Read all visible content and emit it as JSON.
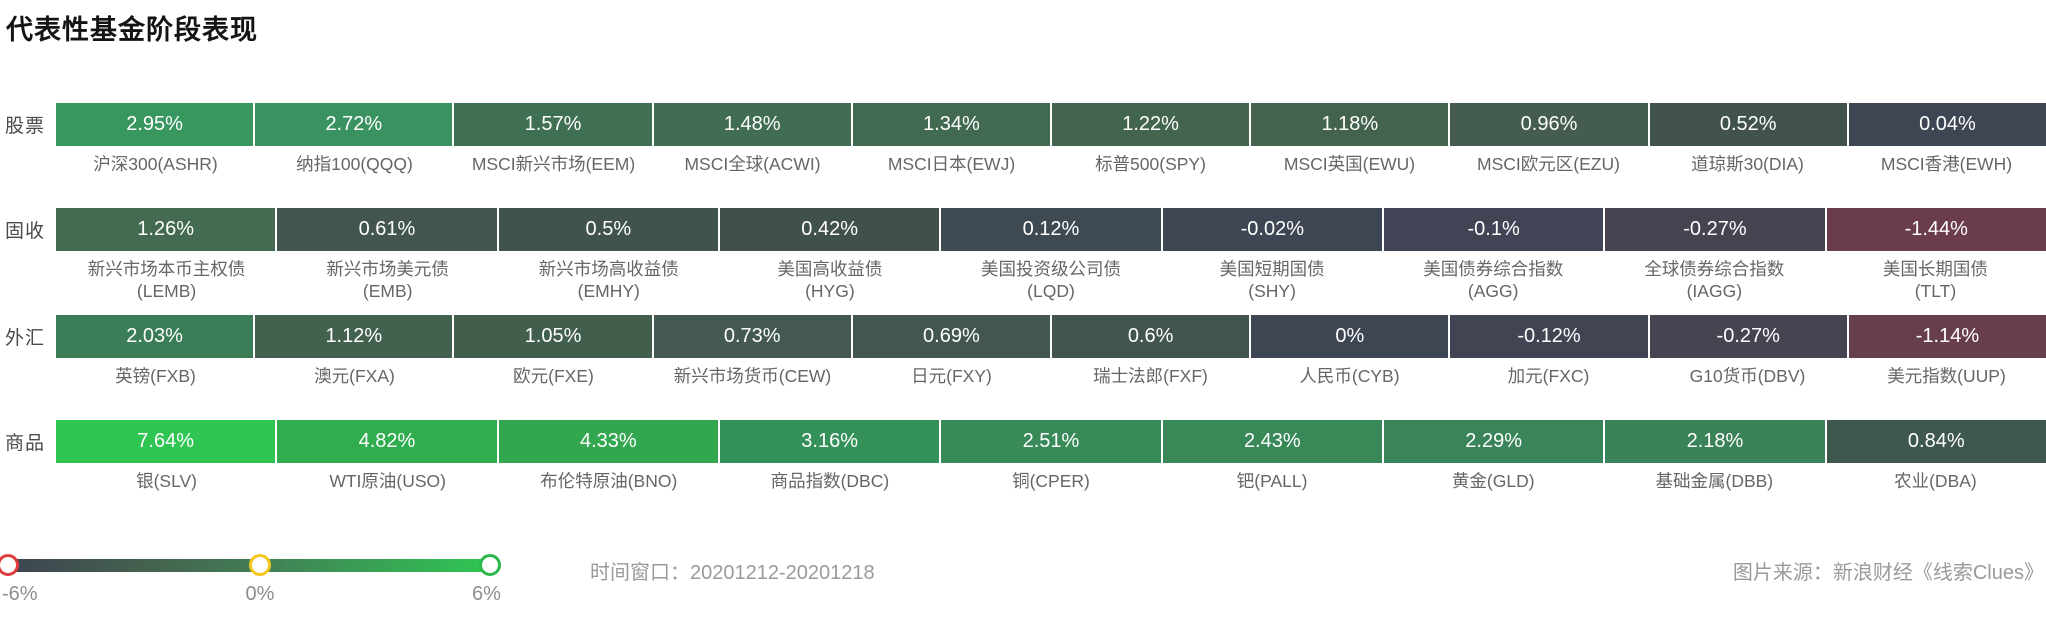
{
  "title": "代表性基金阶段表现",
  "footer": {
    "time_window": "时间窗口：20201212-20201218",
    "source": "图片来源：新浪财经《线索Clues》"
  },
  "legend": {
    "min_label": "-6%",
    "mid_label": "0%",
    "max_label": "6%",
    "track_colors": [
      "#3d4450",
      "#45654f",
      "#418056",
      "#2fc653"
    ],
    "handle_colors": {
      "min": "#e03c3c",
      "mid": "#f3c71b",
      "max": "#2db84c"
    }
  },
  "chart_data": {
    "type": "heatmap",
    "title": "代表性基金阶段表现",
    "time_window": "20201212-20201218",
    "scale": {
      "min": -6,
      "mid": 0,
      "max": 6,
      "unit": "%"
    },
    "rows": [
      {
        "category": "股票",
        "two_line": false,
        "cells": [
          {
            "v": 2.95,
            "label": "2.95%",
            "name": "沪深300",
            "ticker": "(ASHR)",
            "color": "#38965f"
          },
          {
            "v": 2.72,
            "label": "2.72%",
            "name": "纳指100",
            "ticker": "(QQQ)",
            "color": "#3a9261"
          },
          {
            "v": 1.57,
            "label": "1.57%",
            "name": "MSCI新兴市场",
            "ticker": "(EEM)",
            "color": "#3f7054"
          },
          {
            "v": 1.48,
            "label": "1.48%",
            "name": "MSCI全球",
            "ticker": "(ACWI)",
            "color": "#406d53"
          },
          {
            "v": 1.34,
            "label": "1.34%",
            "name": "MSCI日本",
            "ticker": "(EWJ)",
            "color": "#426951"
          },
          {
            "v": 1.22,
            "label": "1.22%",
            "name": "标普500",
            "ticker": "(SPY)",
            "color": "#436550"
          },
          {
            "v": 1.18,
            "label": "1.18%",
            "name": "MSCI英国",
            "ticker": "(EWU)",
            "color": "#44634f"
          },
          {
            "v": 0.96,
            "label": "0.96%",
            "name": "MSCI欧元区",
            "ticker": "(EZU)",
            "color": "#455d4e"
          },
          {
            "v": 0.52,
            "label": "0.52%",
            "name": "道琼斯30",
            "ticker": "(DIA)",
            "color": "#42524e"
          },
          {
            "v": 0.04,
            "label": "0.04%",
            "name": "MSCI香港",
            "ticker": "(EWH)",
            "color": "#3f4653"
          }
        ]
      },
      {
        "category": "固收",
        "two_line": true,
        "cells": [
          {
            "v": 1.26,
            "label": "1.26%",
            "name": "新兴市场本币主权债",
            "ticker": "(LEMB)",
            "color": "#446b51"
          },
          {
            "v": 0.61,
            "label": "0.61%",
            "name": "新兴市场美元债",
            "ticker": "(EMB)",
            "color": "#42554e"
          },
          {
            "v": 0.5,
            "label": "0.5%",
            "name": "新兴市场高收益债",
            "ticker": "(EMHY)",
            "color": "#41534d"
          },
          {
            "v": 0.42,
            "label": "0.42%",
            "name": "美国高收益债",
            "ticker": "(HYG)",
            "color": "#40504c"
          },
          {
            "v": 0.12,
            "label": "0.12%",
            "name": "美国投资级公司债",
            "ticker": "(LQD)",
            "color": "#3f4952"
          },
          {
            "v": -0.02,
            "label": "-0.02%",
            "name": "美国短期国债",
            "ticker": "(SHY)",
            "color": "#3e4553"
          },
          {
            "v": -0.1,
            "label": "-0.1%",
            "name": "美国债券综合指数",
            "ticker": "(AGG)",
            "color": "#404454"
          },
          {
            "v": -0.27,
            "label": "-0.27%",
            "name": "全球债券综合指数",
            "ticker": "(IAGG)",
            "color": "#474350"
          },
          {
            "v": -1.44,
            "label": "-1.44%",
            "name": "美国长期国债",
            "ticker": "(TLT)",
            "color": "#6b3c4c"
          }
        ]
      },
      {
        "category": "外汇",
        "two_line": false,
        "cells": [
          {
            "v": 2.03,
            "label": "2.03%",
            "name": "英镑",
            "ticker": "(FXB)",
            "color": "#3b7d56"
          },
          {
            "v": 1.12,
            "label": "1.12%",
            "name": "澳元",
            "ticker": "(FXA)",
            "color": "#43614f"
          },
          {
            "v": 1.05,
            "label": "1.05%",
            "name": "欧元",
            "ticker": "(FXE)",
            "color": "#425f4e"
          },
          {
            "v": 0.73,
            "label": "0.73%",
            "name": "新兴市场货币",
            "ticker": "(CEW)",
            "color": "#44594f"
          },
          {
            "v": 0.69,
            "label": "0.69%",
            "name": "日元",
            "ticker": "(FXY)",
            "color": "#43574e"
          },
          {
            "v": 0.6,
            "label": "0.6%",
            "name": "瑞士法郎",
            "ticker": "(FXF)",
            "color": "#42554d"
          },
          {
            "v": 0,
            "label": "0%",
            "name": "人民币",
            "ticker": "(CYB)",
            "color": "#3e4553"
          },
          {
            "v": -0.12,
            "label": "-0.12%",
            "name": "加元",
            "ticker": "(FXC)",
            "color": "#414452"
          },
          {
            "v": -0.27,
            "label": "-0.27%",
            "name": "G10货币",
            "ticker": "(DBV)",
            "color": "#474350"
          },
          {
            "v": -1.14,
            "label": "-1.14%",
            "name": "美元指数",
            "ticker": "(UUP)",
            "color": "#673e4e"
          }
        ]
      },
      {
        "category": "商品",
        "two_line": false,
        "cells": [
          {
            "v": 7.64,
            "label": "7.64%",
            "name": "银",
            "ticker": "(SLV)",
            "color": "#2ec553"
          },
          {
            "v": 4.82,
            "label": "4.82%",
            "name": "WTI原油",
            "ticker": "(USO)",
            "color": "#30ad4e"
          },
          {
            "v": 4.33,
            "label": "4.33%",
            "name": "布伦特原油",
            "ticker": "(BNO)",
            "color": "#32a750"
          },
          {
            "v": 3.16,
            "label": "3.16%",
            "name": "商品指数",
            "ticker": "(DBC)",
            "color": "#35915a"
          },
          {
            "v": 2.51,
            "label": "2.51%",
            "name": "铜",
            "ticker": "(CPER)",
            "color": "#388a59"
          },
          {
            "v": 2.43,
            "label": "2.43%",
            "name": "钯",
            "ticker": "(PALL)",
            "color": "#388858"
          },
          {
            "v": 2.29,
            "label": "2.29%",
            "name": "黄金",
            "ticker": "(GLD)",
            "color": "#398458"
          },
          {
            "v": 2.18,
            "label": "2.18%",
            "name": "基础金属",
            "ticker": "(DBB)",
            "color": "#3a8257"
          },
          {
            "v": 0.84,
            "label": "0.84%",
            "name": "农业",
            "ticker": "(DBA)",
            "color": "#3f584e"
          }
        ]
      }
    ]
  }
}
